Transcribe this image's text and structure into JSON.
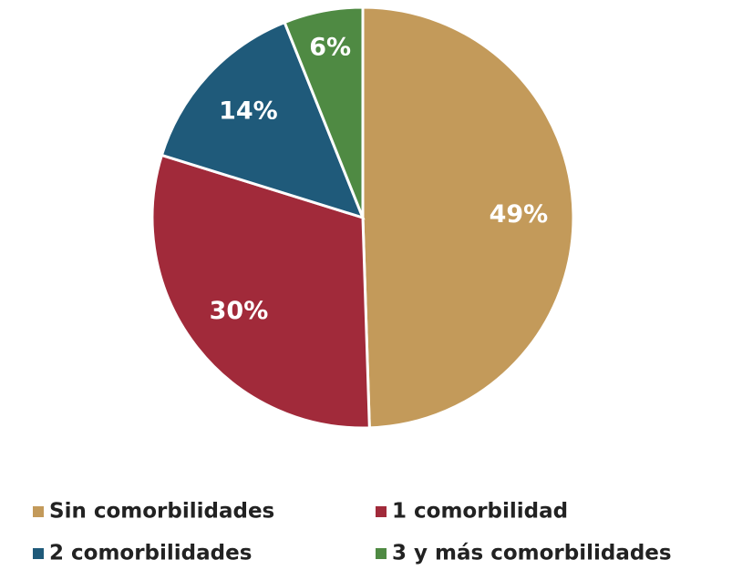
{
  "chart_data": {
    "type": "pie",
    "categories": [
      "Sin comorbilidades",
      "1 comorbilidad",
      "2 comorbilidades",
      "3 y más comorbilidades"
    ],
    "values": [
      49,
      30,
      14,
      6
    ],
    "value_labels": [
      "49%",
      "30%",
      "14%",
      "6%"
    ],
    "colors": [
      "#c39a5a",
      "#a12a3a",
      "#1f5a7a",
      "#4f8a43"
    ]
  }
}
